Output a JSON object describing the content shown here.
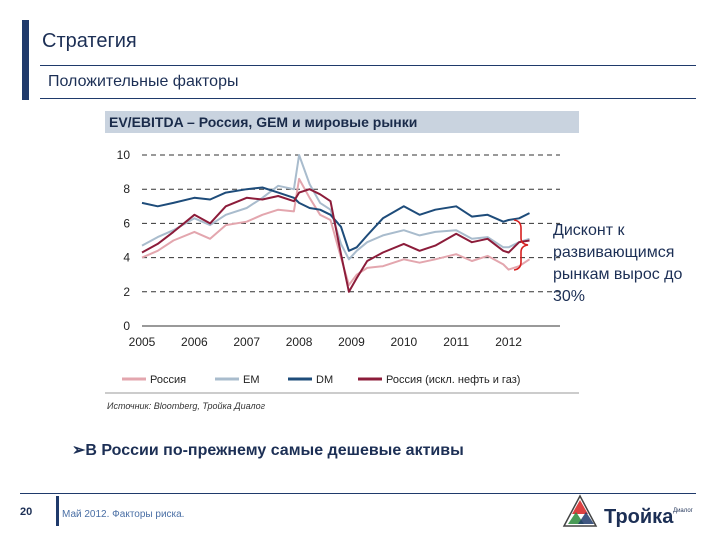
{
  "header": {
    "title": "Стратегия",
    "subtitle": "Положительные факторы"
  },
  "chart_data": {
    "type": "line",
    "title": "EV/EBITDA – Россия, GEM и мировые рынки",
    "source": "Источник: Bloomberg, Тройка Диалог",
    "ylim": [
      0,
      10
    ],
    "yticks": [
      0,
      2,
      4,
      6,
      8,
      10
    ],
    "xlim": [
      2005.0,
      2012.6
    ],
    "xticks": [
      "2005",
      "2006",
      "2007",
      "2008",
      "2009",
      "2010",
      "2011",
      "2012"
    ],
    "grid": "horizontal-dashed",
    "legend_position": "bottom",
    "series": [
      {
        "name": "Россия",
        "color": "#e3a6ae",
        "x": [
          2005.0,
          2005.3,
          2005.6,
          2006.0,
          2006.3,
          2006.6,
          2007.0,
          2007.3,
          2007.6,
          2007.9,
          2008.0,
          2008.2,
          2008.4,
          2008.6,
          2008.8,
          2008.95,
          2009.1,
          2009.3,
          2009.6,
          2010.0,
          2010.3,
          2010.6,
          2011.0,
          2011.3,
          2011.6,
          2011.9,
          2012.0,
          2012.2,
          2012.4
        ],
        "y": [
          4.0,
          4.4,
          5.0,
          5.5,
          5.1,
          5.9,
          6.1,
          6.5,
          6.8,
          6.7,
          8.6,
          7.5,
          6.5,
          6.2,
          4.0,
          2.4,
          3.0,
          3.4,
          3.5,
          3.9,
          3.7,
          3.9,
          4.2,
          3.8,
          4.1,
          3.6,
          3.3,
          3.5,
          3.9
        ]
      },
      {
        "name": "EM",
        "color": "#a9bccd",
        "x": [
          2005.0,
          2005.3,
          2005.6,
          2006.0,
          2006.3,
          2006.6,
          2007.0,
          2007.3,
          2007.6,
          2007.9,
          2008.0,
          2008.2,
          2008.4,
          2008.6,
          2008.8,
          2008.95,
          2009.1,
          2009.3,
          2009.6,
          2010.0,
          2010.3,
          2010.6,
          2011.0,
          2011.3,
          2011.6,
          2011.9,
          2012.0,
          2012.2,
          2012.4
        ],
        "y": [
          4.7,
          5.2,
          5.6,
          6.3,
          5.9,
          6.5,
          6.9,
          7.5,
          8.2,
          8.0,
          10.0,
          8.3,
          7.2,
          6.8,
          4.8,
          3.9,
          4.4,
          4.9,
          5.3,
          5.6,
          5.3,
          5.5,
          5.6,
          5.1,
          5.2,
          4.6,
          4.6,
          4.9,
          5.1
        ]
      },
      {
        "name": "DM",
        "color": "#1e4c7a",
        "x": [
          2005.0,
          2005.3,
          2005.6,
          2006.0,
          2006.3,
          2006.6,
          2007.0,
          2007.3,
          2007.6,
          2007.9,
          2008.0,
          2008.2,
          2008.4,
          2008.6,
          2008.8,
          2008.95,
          2009.1,
          2009.3,
          2009.6,
          2010.0,
          2010.3,
          2010.6,
          2011.0,
          2011.3,
          2011.6,
          2011.9,
          2012.0,
          2012.2,
          2012.4
        ],
        "y": [
          7.2,
          7.0,
          7.2,
          7.5,
          7.4,
          7.8,
          8.0,
          8.1,
          7.8,
          7.5,
          7.2,
          6.9,
          6.8,
          6.5,
          5.8,
          4.4,
          4.6,
          5.3,
          6.3,
          7.0,
          6.5,
          6.8,
          7.0,
          6.4,
          6.5,
          6.1,
          6.2,
          6.3,
          6.6
        ]
      },
      {
        "name": "Россия (искл. нефть и газ)",
        "color": "#8c1c3a",
        "x": [
          2005.0,
          2005.3,
          2005.6,
          2006.0,
          2006.3,
          2006.6,
          2007.0,
          2007.3,
          2007.6,
          2007.9,
          2008.0,
          2008.2,
          2008.4,
          2008.6,
          2008.8,
          2008.95,
          2009.1,
          2009.3,
          2009.6,
          2010.0,
          2010.3,
          2010.6,
          2011.0,
          2011.3,
          2011.6,
          2011.9,
          2012.0,
          2012.2,
          2012.4
        ],
        "y": [
          4.3,
          4.8,
          5.5,
          6.5,
          6.0,
          7.0,
          7.5,
          7.4,
          7.6,
          7.3,
          7.8,
          8.0,
          7.7,
          7.3,
          4.2,
          2.0,
          2.8,
          3.8,
          4.3,
          4.8,
          4.4,
          4.7,
          5.4,
          4.9,
          5.1,
          4.4,
          4.3,
          4.9,
          5.0
        ]
      }
    ]
  },
  "annotation": {
    "text": "Дисконт к развивающимся рынкам вырос до 30%"
  },
  "bullet": {
    "text": "В России по-прежнему самые дешевые активы"
  },
  "footer": {
    "page": "20",
    "text": "Май 2012. Факторы риска."
  },
  "logo": {
    "name": "Тройка",
    "sub": "Диалог"
  }
}
